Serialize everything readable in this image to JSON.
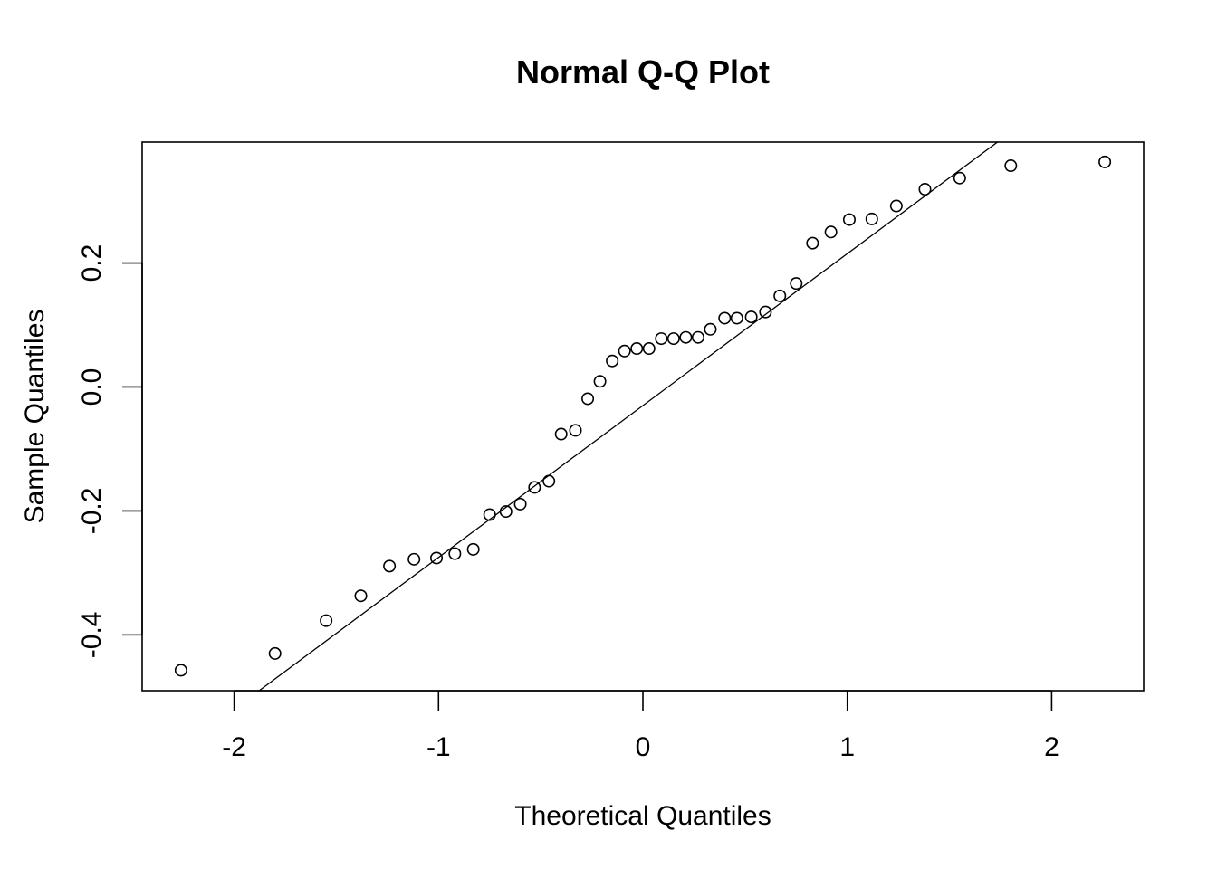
{
  "chart_data": {
    "type": "scatter",
    "title": "Normal Q-Q Plot",
    "xlabel": "Theoretical Quantiles",
    "ylabel": "Sample Quantiles",
    "xlim": [
      -2.45,
      2.45
    ],
    "ylim": [
      -0.49,
      0.395
    ],
    "x_ticks": [
      {
        "value": -2,
        "label": "-2"
      },
      {
        "value": -1,
        "label": "-1"
      },
      {
        "value": 0,
        "label": "0"
      },
      {
        "value": 1,
        "label": "1"
      },
      {
        "value": 2,
        "label": "2"
      }
    ],
    "y_ticks": [
      {
        "value": -0.4,
        "label": "-0.4"
      },
      {
        "value": -0.2,
        "label": "-0.2"
      },
      {
        "value": 0.0,
        "label": "0.0"
      },
      {
        "value": 0.2,
        "label": "0.2"
      }
    ],
    "grid": false,
    "legend": "none",
    "reference_line": {
      "intercept": -0.03,
      "slope": 0.245
    },
    "points": [
      {
        "x": -2.26,
        "y": -0.457
      },
      {
        "x": -1.8,
        "y": -0.43
      },
      {
        "x": -1.55,
        "y": -0.377
      },
      {
        "x": -1.38,
        "y": -0.337
      },
      {
        "x": -1.24,
        "y": -0.289
      },
      {
        "x": -1.12,
        "y": -0.278
      },
      {
        "x": -1.01,
        "y": -0.276
      },
      {
        "x": -0.92,
        "y": -0.269
      },
      {
        "x": -0.83,
        "y": -0.262
      },
      {
        "x": -0.75,
        "y": -0.206
      },
      {
        "x": -0.67,
        "y": -0.201
      },
      {
        "x": -0.6,
        "y": -0.189
      },
      {
        "x": -0.53,
        "y": -0.162
      },
      {
        "x": -0.46,
        "y": -0.152
      },
      {
        "x": -0.4,
        "y": -0.076
      },
      {
        "x": -0.33,
        "y": -0.07
      },
      {
        "x": -0.27,
        "y": -0.019
      },
      {
        "x": -0.21,
        "y": 0.009
      },
      {
        "x": -0.15,
        "y": 0.042
      },
      {
        "x": -0.09,
        "y": 0.058
      },
      {
        "x": -0.03,
        "y": 0.062
      },
      {
        "x": 0.03,
        "y": 0.062
      },
      {
        "x": 0.09,
        "y": 0.078
      },
      {
        "x": 0.15,
        "y": 0.078
      },
      {
        "x": 0.21,
        "y": 0.08
      },
      {
        "x": 0.27,
        "y": 0.08
      },
      {
        "x": 0.33,
        "y": 0.093
      },
      {
        "x": 0.4,
        "y": 0.111
      },
      {
        "x": 0.46,
        "y": 0.111
      },
      {
        "x": 0.53,
        "y": 0.113
      },
      {
        "x": 0.6,
        "y": 0.121
      },
      {
        "x": 0.67,
        "y": 0.147
      },
      {
        "x": 0.75,
        "y": 0.167
      },
      {
        "x": 0.83,
        "y": 0.232
      },
      {
        "x": 0.92,
        "y": 0.25
      },
      {
        "x": 1.01,
        "y": 0.27
      },
      {
        "x": 1.12,
        "y": 0.271
      },
      {
        "x": 1.24,
        "y": 0.292
      },
      {
        "x": 1.38,
        "y": 0.319
      },
      {
        "x": 1.55,
        "y": 0.337
      },
      {
        "x": 1.8,
        "y": 0.357
      },
      {
        "x": 2.26,
        "y": 0.363
      }
    ]
  }
}
